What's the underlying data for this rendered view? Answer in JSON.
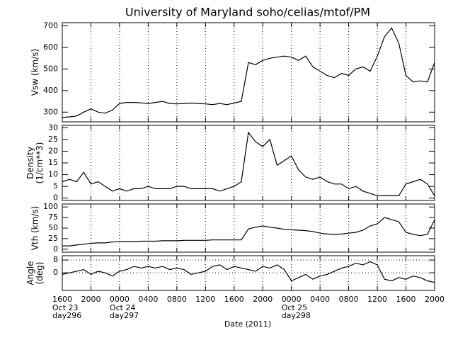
{
  "chart_data": [
    {
      "type": "line",
      "title": "University of Maryland  soho/celias/mtof/PM",
      "ylabel": [
        "Vsw (km/s)"
      ],
      "color": "#000000",
      "x": [
        0,
        1,
        2,
        3,
        4,
        5,
        6,
        7,
        8,
        9,
        10,
        11,
        12,
        13,
        14,
        15,
        16,
        17,
        18,
        19,
        20,
        21,
        22,
        23,
        24,
        25,
        26,
        27,
        28,
        29,
        30,
        31,
        32,
        33,
        34,
        35,
        36,
        37,
        38,
        39,
        40,
        41,
        42,
        43,
        44,
        45,
        46,
        47,
        48,
        49,
        50,
        51,
        52
      ],
      "values": [
        275,
        278,
        282,
        300,
        315,
        300,
        295,
        310,
        340,
        345,
        345,
        343,
        340,
        345,
        350,
        340,
        338,
        340,
        342,
        340,
        338,
        335,
        340,
        335,
        342,
        350,
        530,
        520,
        540,
        550,
        555,
        560,
        555,
        540,
        560,
        510,
        490,
        470,
        460,
        480,
        470,
        500,
        510,
        490,
        560,
        650,
        690,
        620,
        470,
        440,
        445,
        440,
        530
      ],
      "xlim": [
        0,
        52
      ],
      "ylim": [
        255,
        715
      ],
      "yticks": [
        300,
        400,
        500,
        600,
        700
      ],
      "xgrid": true
    },
    {
      "type": "line",
      "ylabel": [
        "Density",
        "(1/cm**3)"
      ],
      "color": "#000000",
      "x": [
        0,
        1,
        2,
        3,
        4,
        5,
        6,
        7,
        8,
        9,
        10,
        11,
        12,
        13,
        14,
        15,
        16,
        17,
        18,
        19,
        20,
        21,
        22,
        23,
        24,
        25,
        26,
        27,
        28,
        29,
        30,
        31,
        32,
        33,
        34,
        35,
        36,
        37,
        38,
        39,
        40,
        41,
        42,
        43,
        44,
        45,
        46,
        47,
        48,
        49,
        50,
        51,
        52
      ],
      "values": [
        7,
        8,
        7,
        11,
        6,
        7,
        5,
        3,
        4,
        3,
        4,
        4,
        5,
        4,
        4,
        4,
        5,
        5,
        4,
        4,
        4,
        4,
        3,
        4,
        5,
        7,
        28,
        24,
        22,
        25,
        14,
        16,
        18,
        12,
        9,
        8,
        9,
        7,
        6,
        6,
        4,
        5,
        3,
        2,
        1,
        1,
        1,
        1,
        6,
        7,
        8,
        6,
        1
      ],
      "xlim": [
        0,
        52
      ],
      "ylim": [
        -1,
        31
      ],
      "yticks": [
        0,
        5,
        10,
        15,
        20,
        25,
        30
      ],
      "xgrid": true
    },
    {
      "type": "line",
      "ylabel": [
        "Vth (km/s)"
      ],
      "color": "#000000",
      "x": [
        0,
        1,
        2,
        3,
        4,
        5,
        6,
        7,
        8,
        9,
        10,
        11,
        12,
        13,
        14,
        15,
        16,
        17,
        18,
        19,
        20,
        21,
        22,
        23,
        24,
        25,
        26,
        27,
        28,
        29,
        30,
        31,
        32,
        33,
        34,
        35,
        36,
        37,
        38,
        39,
        40,
        41,
        42,
        43,
        44,
        45,
        46,
        47,
        48,
        49,
        50,
        51,
        52
      ],
      "values": [
        8,
        8,
        10,
        12,
        14,
        15,
        15,
        17,
        18,
        18,
        18,
        19,
        19,
        19,
        20,
        20,
        20,
        21,
        21,
        21,
        21,
        22,
        22,
        22,
        22,
        22,
        48,
        52,
        55,
        52,
        50,
        47,
        46,
        45,
        44,
        42,
        38,
        36,
        35,
        36,
        38,
        40,
        45,
        55,
        60,
        75,
        70,
        65,
        40,
        35,
        32,
        35,
        70
      ],
      "xlim": [
        0,
        52
      ],
      "ylim": [
        -7,
        107
      ],
      "yticks": [
        0,
        25,
        50,
        75,
        100
      ],
      "xgrid": true
    },
    {
      "type": "line",
      "ylabel": [
        "Angle",
        "(deg)"
      ],
      "color": "#000000",
      "xlabel": "Date (2011)",
      "x": [
        0,
        1,
        2,
        3,
        4,
        5,
        6,
        7,
        8,
        9,
        10,
        11,
        12,
        13,
        14,
        15,
        16,
        17,
        18,
        19,
        20,
        21,
        22,
        23,
        24,
        25,
        26,
        27,
        28,
        29,
        30,
        31,
        32,
        33,
        34,
        35,
        36,
        37,
        38,
        39,
        40,
        41,
        42,
        43,
        44,
        45,
        46,
        47,
        48,
        49,
        50,
        51,
        52
      ],
      "values": [
        -1,
        0,
        1,
        2,
        -1,
        1,
        0,
        -2,
        1,
        2,
        4,
        3,
        4,
        3,
        4,
        2,
        3,
        2,
        -1,
        0,
        1,
        4,
        5,
        2,
        4,
        3,
        2,
        1,
        4,
        3,
        5,
        2,
        -5,
        -3,
        -1,
        -4,
        -2,
        -1,
        1,
        3,
        4,
        6,
        5,
        7,
        5,
        -4,
        -5,
        -3,
        -4,
        -2,
        -3,
        -5,
        -6
      ],
      "xlim": [
        0,
        52
      ],
      "ylim": [
        -11,
        10.7
      ],
      "yticks": [
        0,
        8
      ],
      "xgrid": true,
      "ygrid": true,
      "xticks": [
        {
          "value": 0,
          "label": "1600"
        },
        {
          "value": 4,
          "label": "2000"
        },
        {
          "value": 8,
          "label": "0000"
        },
        {
          "value": 12,
          "label": "0400"
        },
        {
          "value": 16,
          "label": "0800"
        },
        {
          "value": 20,
          "label": "1200"
        },
        {
          "value": 24,
          "label": "1600"
        },
        {
          "value": 28,
          "label": "2000"
        },
        {
          "value": 32,
          "label": "0000"
        },
        {
          "value": 36,
          "label": "0400"
        },
        {
          "value": 40,
          "label": "0800"
        },
        {
          "value": 44,
          "label": "1200"
        },
        {
          "value": 48,
          "label": "1600"
        },
        {
          "value": 52,
          "label": "2000"
        }
      ],
      "date_labels": [
        {
          "value": 0,
          "label": "Oct 23",
          "sublabel": "day296"
        },
        {
          "value": 8,
          "label": "Oct 24",
          "sublabel": "day297"
        },
        {
          "value": 32,
          "label": "Oct 25",
          "sublabel": "day298"
        }
      ]
    }
  ]
}
